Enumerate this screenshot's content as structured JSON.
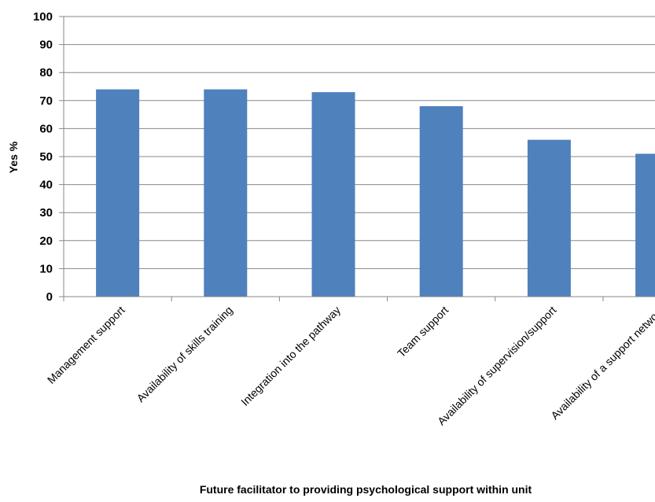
{
  "chart_data": {
    "type": "bar",
    "categories": [
      "Management support",
      "Availability of skills training",
      "Integration into the pathway",
      "Team support",
      "Availability of supervision/support",
      "Availability of a support network"
    ],
    "values": [
      74,
      74,
      73,
      68,
      56,
      51
    ],
    "xlabel": "Future facilitator to providing psychological support within unit",
    "ylabel": "Yes %",
    "ylim": [
      0,
      100
    ],
    "yticks": [
      0,
      10,
      20,
      30,
      40,
      50,
      60,
      70,
      80,
      90,
      100
    ],
    "grid": true,
    "legend": "none",
    "bar_color": "#4F81BD"
  }
}
